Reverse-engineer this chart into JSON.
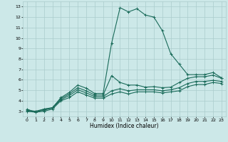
{
  "title": "",
  "xlabel": "Humidex (Indice chaleur)",
  "xlim": [
    -0.5,
    23.5
  ],
  "ylim": [
    2.5,
    13.5
  ],
  "yticks": [
    3,
    4,
    5,
    6,
    7,
    8,
    9,
    10,
    11,
    12,
    13
  ],
  "xticks": [
    0,
    1,
    2,
    3,
    4,
    5,
    6,
    7,
    8,
    9,
    10,
    11,
    12,
    13,
    14,
    15,
    16,
    17,
    18,
    19,
    20,
    21,
    22,
    23
  ],
  "background_color": "#cce8e8",
  "grid_color": "#aacccc",
  "line_color": "#1a6b5a",
  "lines": [
    {
      "x": [
        0,
        1,
        2,
        3,
        4,
        5,
        6,
        7,
        8,
        9,
        10,
        11,
        12,
        13,
        14,
        15,
        16,
        17,
        18,
        19,
        20,
        21,
        22,
        23
      ],
      "y": [
        3.2,
        2.9,
        3.2,
        3.3,
        4.3,
        4.8,
        5.5,
        5.2,
        4.7,
        4.7,
        9.5,
        12.9,
        12.5,
        12.8,
        12.2,
        12.0,
        10.7,
        8.5,
        7.5,
        6.5,
        6.5,
        6.5,
        6.7,
        6.2
      ]
    },
    {
      "x": [
        0,
        1,
        2,
        3,
        4,
        5,
        6,
        7,
        8,
        9,
        10,
        11,
        12,
        13,
        14,
        15,
        16,
        17,
        18,
        19,
        20,
        21,
        22,
        23
      ],
      "y": [
        3.1,
        3.0,
        3.2,
        3.35,
        4.2,
        4.65,
        5.25,
        4.95,
        4.55,
        4.55,
        6.4,
        5.75,
        5.5,
        5.5,
        5.3,
        5.35,
        5.25,
        5.3,
        5.75,
        6.15,
        6.3,
        6.3,
        6.45,
        6.15
      ]
    },
    {
      "x": [
        0,
        1,
        2,
        3,
        4,
        5,
        6,
        7,
        8,
        9,
        10,
        11,
        12,
        13,
        14,
        15,
        16,
        17,
        18,
        19,
        20,
        21,
        22,
        23
      ],
      "y": [
        3.0,
        2.95,
        3.1,
        3.3,
        4.1,
        4.5,
        5.05,
        4.75,
        4.4,
        4.4,
        4.95,
        5.15,
        4.95,
        5.05,
        5.05,
        5.05,
        4.95,
        5.05,
        5.25,
        5.65,
        5.85,
        5.85,
        5.95,
        5.85
      ]
    },
    {
      "x": [
        0,
        1,
        2,
        3,
        4,
        5,
        6,
        7,
        8,
        9,
        10,
        11,
        12,
        13,
        14,
        15,
        16,
        17,
        18,
        19,
        20,
        21,
        22,
        23
      ],
      "y": [
        3.0,
        2.9,
        3.0,
        3.2,
        4.0,
        4.3,
        4.85,
        4.55,
        4.25,
        4.25,
        4.65,
        4.85,
        4.65,
        4.85,
        4.85,
        4.85,
        4.75,
        4.85,
        4.95,
        5.35,
        5.55,
        5.55,
        5.75,
        5.65
      ]
    }
  ]
}
